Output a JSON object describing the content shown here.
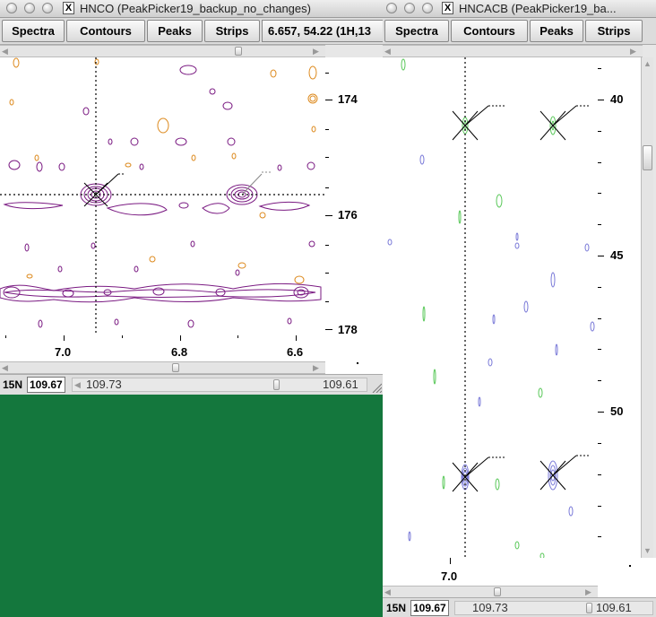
{
  "windows": {
    "hnco": {
      "title": "HNCO (PeakPicker19_backup_no_changes)",
      "buttons": {
        "spectra": "Spectra",
        "contours": "Contours",
        "peaks": "Peaks",
        "strips": "Strips"
      },
      "coord_readout": "6.657,  54.22 (1H,13",
      "y_ticks": [
        "174",
        "176",
        "178"
      ],
      "x_ticks": [
        "7.0",
        "6.8",
        "6.6"
      ],
      "status": {
        "dim_label": "15N",
        "value": "109.67",
        "min": "109.73",
        "max": "109.61"
      }
    },
    "hncacb": {
      "title": "HNCACB (PeakPicker19_ba...",
      "buttons": {
        "spectra": "Spectra",
        "contours": "Contours",
        "peaks": "Peaks",
        "strips": "Strips"
      },
      "y_ticks": [
        "40",
        "45",
        "50"
      ],
      "x_ticks": [
        "7.0"
      ],
      "status": {
        "dim_label": "15N",
        "value": "109.67",
        "min": "109.73",
        "max": "109.61"
      }
    }
  },
  "colors": {
    "desktop": "#14773d",
    "hnco_positive": "#7a1a82",
    "hnco_negative": "#dd8a1e",
    "hncacb_positive": "#7a7ad8",
    "hncacb_negative": "#5ac85a"
  }
}
